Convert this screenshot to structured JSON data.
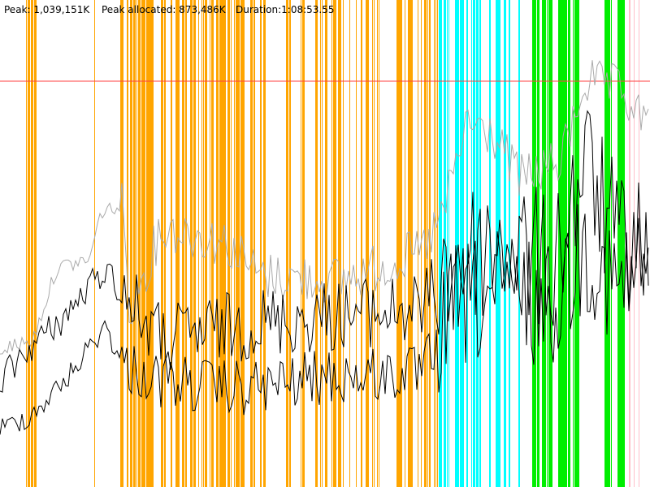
{
  "header": {
    "peak": "Peak: 1,039,151K",
    "peak_allocated": "Peak allocated: 873,486K",
    "duration": "Duration:1:08:53.55"
  }
}
